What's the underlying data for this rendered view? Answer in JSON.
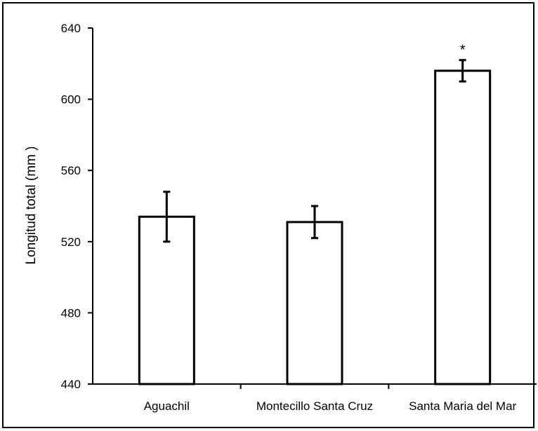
{
  "chart_data": {
    "type": "bar",
    "title": "",
    "xlabel": "",
    "ylabel": "Longitud total (mm )",
    "ylim": [
      440,
      640
    ],
    "yticks": [
      440,
      480,
      520,
      560,
      600,
      640
    ],
    "grid": false,
    "legend": "none",
    "categories": [
      "Aguachil",
      "Montecillo Santa Cruz",
      "Santa Maria del Mar"
    ],
    "values": [
      534,
      531,
      616
    ],
    "error": [
      14,
      9,
      6
    ],
    "annotations": [
      "",
      "",
      "*"
    ],
    "bar_fill": "#ffffff",
    "bar_stroke": "#000000"
  }
}
